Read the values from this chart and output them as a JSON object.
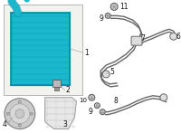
{
  "bg": "#ffffff",
  "condenser_fill": "#1ab8cc",
  "condenser_edge": "#0090a8",
  "condenser_dark": "#007a8a",
  "box_fill": "#f2f2ee",
  "box_edge": "#aaaaaa",
  "comp_fill": "#cccccc",
  "comp_edge": "#888888",
  "bracket_fill": "#e8e8e8",
  "bracket_edge": "#999999",
  "line_col": "#666666",
  "label_col": "#111111",
  "pipe_fill": "#1ab8cc",
  "pipe_edge": "#007a8a"
}
